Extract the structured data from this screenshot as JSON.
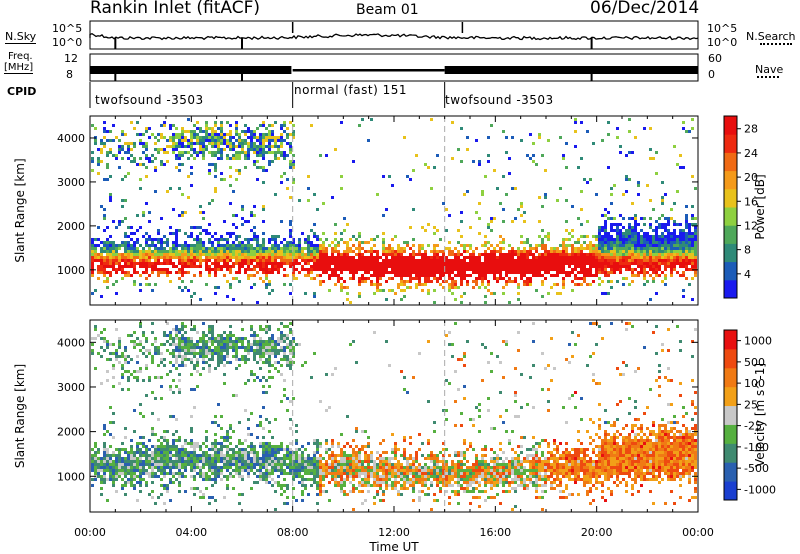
{
  "header": {
    "station": "Rankin Inlet (fitACF)",
    "beam": "Beam 01",
    "date": "06/Dec/2014"
  },
  "panels": {
    "nsky": {
      "label": "N.Sky",
      "tick_top": "10^5",
      "tick_bottom": "10^0",
      "right_label": "N.Search",
      "right_tick_top": "10^5",
      "right_tick_bottom": "10^0"
    },
    "freq": {
      "label": "Freq.",
      "unit": "[MHz]",
      "tick_top": "12",
      "tick_bottom": "8",
      "right_label": "Nave",
      "right_tick_top": "60",
      "right_tick_bottom": "0"
    },
    "cpid": {
      "label": "CPID",
      "segments": [
        "twofsound -3503",
        "normal (fast) 151",
        "twofsound -3503"
      ]
    }
  },
  "chart_data": [
    {
      "type": "heatmap",
      "name": "power",
      "ylabel": "Slant Range [km]",
      "ylim": [
        200,
        4500
      ],
      "yticks": [
        "1000",
        "2000",
        "3000",
        "4000"
      ],
      "xlim": [
        0,
        24
      ],
      "colorbar": {
        "label": "Power [dB]",
        "ticks": [
          "4",
          "8",
          "12",
          "16",
          "20",
          "24",
          "28"
        ],
        "colors": [
          "#1a1aee",
          "#1c5cb8",
          "#2f8a78",
          "#4fa85a",
          "#8ed040",
          "#e8c21c",
          "#f49a1a",
          "#f06a14",
          "#ee2a10",
          "#e80e0e"
        ]
      }
    },
    {
      "type": "heatmap",
      "name": "velocity",
      "ylabel": "Slant Range [km]",
      "ylim": [
        200,
        4500
      ],
      "yticks": [
        "1000",
        "2000",
        "3000",
        "4000"
      ],
      "xlim": [
        0,
        24
      ],
      "xticks": [
        "00:00",
        "04:00",
        "08:00",
        "12:00",
        "16:00",
        "20:00",
        "00:00"
      ],
      "xlabel": "Time UT",
      "colorbar": {
        "label": "Velocity [m s^-1]",
        "ticks": [
          "1000",
          "500",
          "100",
          "25",
          "-25",
          "-100",
          "-500",
          "-1000"
        ],
        "colors": [
          "#1a3fd0",
          "#2a60b0",
          "#3f8a70",
          "#56b040",
          "#c8c8c8",
          "#f2a018",
          "#f07a14",
          "#ee4a10",
          "#e81010"
        ]
      }
    }
  ]
}
